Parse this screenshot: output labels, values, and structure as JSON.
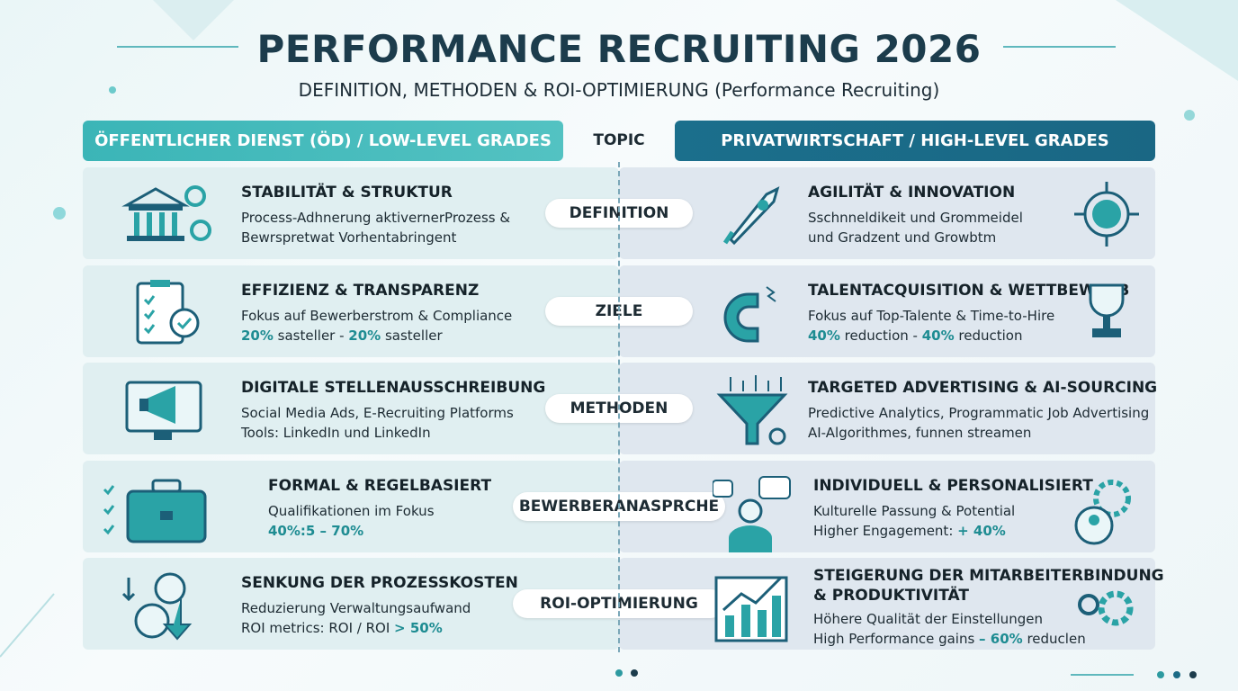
{
  "header": {
    "title": "PERFORMANCE RECRUITING 2026",
    "subtitle": "DEFINITION, METHODEN & ROI-OPTIMIERUNG (Performance Recruiting)"
  },
  "columns": {
    "left": "ÖFFENTLICHER DIENST (ÖD) / LOW-LEVEL GRADES",
    "topic": "TOPIC",
    "right": "PRIVATWIRTSCHAFT / HIGH-LEVEL GRADES"
  },
  "rows": [
    {
      "topic": "DEFINITION",
      "left": {
        "title": [
          "STABILITÄT & STRUKTUR"
        ],
        "lines": [
          [
            {
              "t": "Process-Adhnerung aktivernerProzess &"
            }
          ],
          [
            {
              "t": "Bewrspretwat Vorhentabringent"
            }
          ]
        ]
      },
      "right": {
        "title": [
          "AGILITÄT & INNOVATION"
        ],
        "lines": [
          [
            {
              "t": "Sschnneldikeit und Grommeidel"
            }
          ],
          [
            {
              "t": "und Gradzent und Growbtm"
            }
          ]
        ]
      }
    },
    {
      "topic": "ZIELE",
      "left": {
        "title": [
          "EFFIZIENZ & TRANSPARENZ"
        ],
        "lines": [
          [
            {
              "t": "Fokus auf Bewerberstrom & Compliance"
            }
          ],
          [
            {
              "t": "20%",
              "accent": true
            },
            {
              "t": " sasteller - "
            },
            {
              "t": "20%",
              "accent": true
            },
            {
              "t": " sasteller"
            }
          ]
        ]
      },
      "right": {
        "title": [
          "TALENTACQUISITION & WETTBEWERB"
        ],
        "lines": [
          [
            {
              "t": "Fokus auf Top-Talente & Time-to-Hire"
            }
          ],
          [
            {
              "t": "40%",
              "accent": true
            },
            {
              "t": " reduction - "
            },
            {
              "t": "40%",
              "accent": true
            },
            {
              "t": " reduction"
            }
          ]
        ]
      }
    },
    {
      "topic": "METHODEN",
      "left": {
        "title": [
          "DIGITALE STELLENAUSSCHREIBUNG"
        ],
        "lines": [
          [
            {
              "t": "Social Media Ads, E-Recruiting Platforms"
            }
          ],
          [
            {
              "t": "Tools: LinkedIn und LinkedIn"
            }
          ]
        ]
      },
      "right": {
        "title": [
          "TARGETED ADVERTISING & AI-SOURCING"
        ],
        "lines": [
          [
            {
              "t": "Predictive Analytics, Programmatic Job Advertising"
            }
          ],
          [
            {
              "t": "AI-Algorithmes, funnen streamen"
            }
          ]
        ]
      }
    },
    {
      "topic": "BEWERBERANASPRCHE",
      "left": {
        "title": [
          "FORMAL & REGELBASIERT"
        ],
        "lines": [
          [
            {
              "t": "Qualifikationen im Fokus"
            }
          ],
          [
            {
              "t": "40%:5  – 70%",
              "accent": true
            }
          ]
        ]
      },
      "right": {
        "title": [
          "INDIVIDUELL & PERSONALISIERT"
        ],
        "lines": [
          [
            {
              "t": "Kulturelle Passung & Potential"
            }
          ],
          [
            {
              "t": "Higher Engagement: "
            },
            {
              "t": "+ 40%",
              "accent": true
            }
          ]
        ]
      }
    },
    {
      "topic": "ROI-OPTIMIERUNG",
      "left": {
        "title": [
          "SENKUNG DER PROZESSKOSTEN"
        ],
        "lines": [
          [
            {
              "t": "Reduzierung Verwaltungsaufwand"
            }
          ],
          [
            {
              "t": "ROI metrics: ROI / ROI "
            },
            {
              "t": "> 50%",
              "accent": true
            }
          ]
        ]
      },
      "right": {
        "title": [
          "STEIGERUNG DER MITARBEITERBINDUNG",
          "& PRODUKTIVITÄT"
        ],
        "lines": [
          [
            {
              "t": "Höhere Qualität der Einstellungen"
            }
          ],
          [
            {
              "t": "High Performance gains "
            },
            {
              "t": "– 60%",
              "accent": true
            },
            {
              "t": " reduclen"
            }
          ]
        ]
      }
    }
  ]
}
